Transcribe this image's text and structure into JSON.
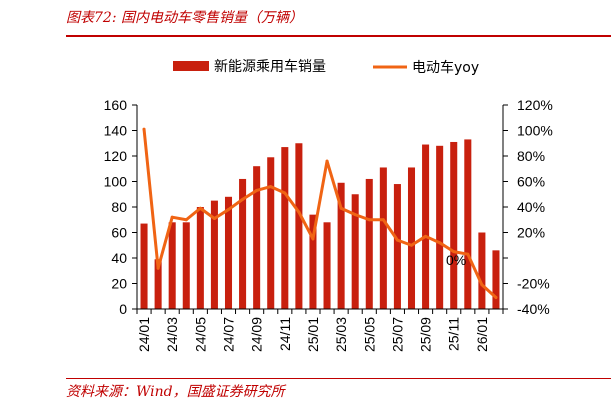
{
  "figure": {
    "title": "图表72: 国内电动车零售销量（万辆）",
    "source": "资料来源：Wind，国盛证券研究所"
  },
  "chart_data": {
    "type": "bar+line",
    "legend_position": "top",
    "categories": [
      "24/01",
      "24/02",
      "24/03",
      "24/04",
      "24/05",
      "24/06",
      "24/07",
      "24/08",
      "24/09",
      "24/10",
      "24/11",
      "24/12",
      "25/01",
      "25/02",
      "25/03",
      "25/04",
      "25/05",
      "25/06",
      "25/07",
      "25/08",
      "25/09",
      "25/10",
      "25/11",
      "25/12",
      "26/01",
      "26/02"
    ],
    "x_tick_labels": [
      "24/01",
      "24/03",
      "24/05",
      "24/07",
      "24/09",
      "24/11",
      "25/01",
      "25/03",
      "25/05",
      "25/07",
      "25/09",
      "25/11",
      "26/01"
    ],
    "series": [
      {
        "name": "新能源乘用车销量",
        "type": "bar",
        "axis": "left",
        "color": "#c8200e",
        "values": [
          67,
          39,
          68,
          68,
          80,
          85,
          88,
          102,
          112,
          119,
          127,
          130,
          74,
          68,
          99,
          90,
          102,
          111,
          98,
          111,
          129,
          128,
          131,
          133,
          60,
          46
        ]
      },
      {
        "name": "电动车yoy",
        "type": "line",
        "axis": "right",
        "color": "#f06414",
        "values": [
          101,
          -8,
          32,
          30,
          39,
          31,
          38,
          46,
          53,
          56,
          51,
          36,
          15,
          76,
          39,
          34,
          30,
          30,
          14,
          10,
          17,
          12,
          5,
          3,
          -21,
          -31
        ]
      }
    ],
    "left_axis": {
      "min": 0,
      "max": 160,
      "step": 20,
      "tick_labels": [
        "0",
        "20",
        "40",
        "60",
        "80",
        "100",
        "120",
        "140",
        "160"
      ]
    },
    "right_axis": {
      "min": -40,
      "max": 120,
      "step": 20,
      "tick_labels": [
        "-40%",
        "-20%",
        "0%",
        "20%",
        "40%",
        "60%",
        "80%",
        "100%",
        "120%"
      ]
    },
    "annotations": [
      "0%"
    ],
    "grid": false
  }
}
